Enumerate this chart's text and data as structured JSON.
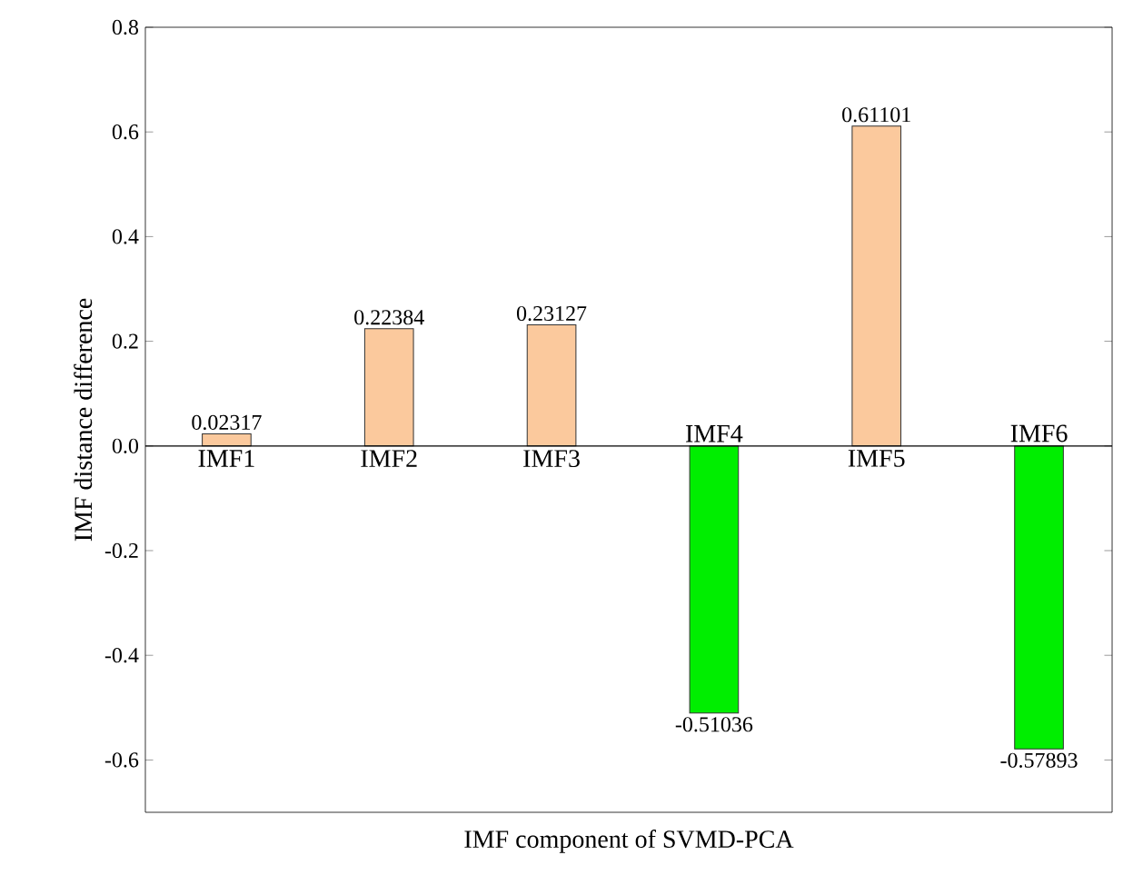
{
  "chart_data": {
    "type": "bar",
    "xlabel": "IMF component of SVMD-PCA",
    "ylabel": "IMF distance difference",
    "categories": [
      "IMF1",
      "IMF2",
      "IMF3",
      "IMF4",
      "IMF5",
      "IMF6"
    ],
    "values": [
      0.02317,
      0.22384,
      0.23127,
      -0.51036,
      0.61101,
      -0.57893
    ],
    "value_labels": [
      "0.02317",
      "0.22384",
      "0.23127",
      "-0.51036",
      "0.61101",
      "-0.57893"
    ],
    "colors": [
      "#fbc99d",
      "#fbc99d",
      "#fbc99d",
      "#00ee00",
      "#fbc99d",
      "#00ee00"
    ],
    "ylim": [
      -0.7,
      0.8
    ],
    "yticks": [
      -0.6,
      -0.4,
      -0.2,
      {
        "value": 0,
        "label": "0.0"
      },
      0.2,
      0.4,
      0.6,
      0.8
    ],
    "tick_labels": "y",
    "grid": false
  }
}
